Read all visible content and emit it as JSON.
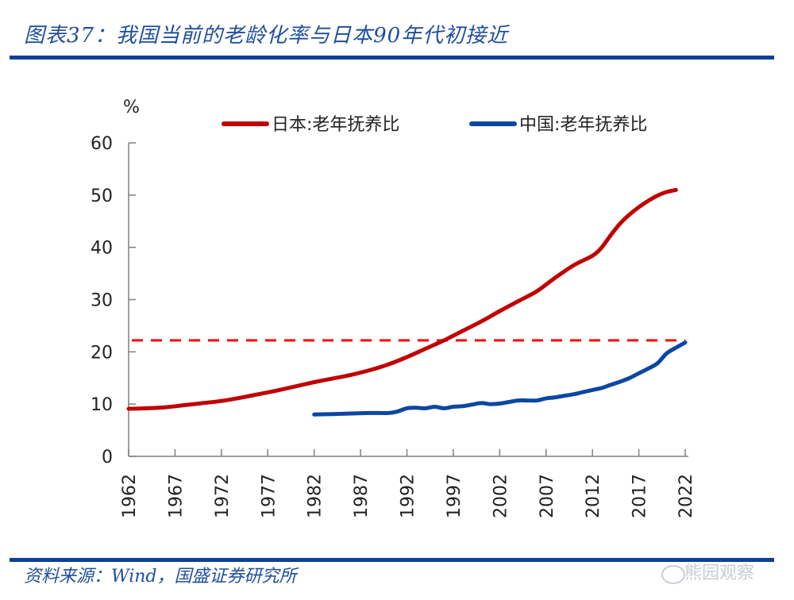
{
  "header": {
    "title": "图表37：我国当前的老龄化率与日本90年代初接近"
  },
  "footer": {
    "source": "资料来源：Wind，国盛证券研究所",
    "watermark": "熊园观察"
  },
  "colors": {
    "brand": "#0b3f99",
    "japan": "#c00000",
    "china": "#0b47a1",
    "reference": "#ff0000"
  },
  "chart_data": {
    "type": "line",
    "title": "我国当前的老龄化率与日本90年代初接近",
    "xlabel": "",
    "ylabel": "%",
    "ylim": [
      0,
      60
    ],
    "xlim": [
      1962,
      2022
    ],
    "yticks": [
      0,
      10,
      20,
      30,
      40,
      50,
      60
    ],
    "xticks": [
      "1962",
      "1967",
      "1972",
      "1977",
      "1982",
      "1987",
      "1992",
      "1997",
      "2002",
      "2007",
      "2012",
      "2017",
      "2022"
    ],
    "grid": false,
    "legend": "top",
    "series": [
      {
        "name": "日本:老年抚养比",
        "color": "#c00000",
        "x": [
          1962,
          1964,
          1966,
          1968,
          1970,
          1972,
          1974,
          1976,
          1978,
          1980,
          1982,
          1984,
          1986,
          1988,
          1990,
          1992,
          1994,
          1996,
          1998,
          2000,
          2002,
          2004,
          2006,
          2008,
          2010,
          2012,
          2013,
          2014,
          2015,
          2016,
          2017,
          2018,
          2019,
          2020,
          2021
        ],
        "values": [
          9.1,
          9.2,
          9.4,
          9.8,
          10.2,
          10.6,
          11.2,
          11.9,
          12.6,
          13.4,
          14.2,
          14.9,
          15.6,
          16.5,
          17.6,
          19.0,
          20.6,
          22.2,
          24.0,
          25.8,
          27.8,
          29.7,
          31.6,
          34.2,
          36.6,
          38.4,
          40.0,
          42.4,
          44.6,
          46.3,
          47.7,
          48.9,
          49.9,
          50.6,
          51.0
        ]
      },
      {
        "name": "中国:老年抚养比",
        "color": "#0b47a1",
        "x": [
          1982,
          1984,
          1986,
          1988,
          1990,
          1991,
          1992,
          1993,
          1994,
          1995,
          1996,
          1997,
          1998,
          1999,
          2000,
          2001,
          2002,
          2003,
          2004,
          2005,
          2006,
          2007,
          2008,
          2009,
          2010,
          2011,
          2012,
          2013,
          2014,
          2015,
          2016,
          2017,
          2018,
          2019,
          2020,
          2021,
          2022
        ],
        "values": [
          8.0,
          8.1,
          8.2,
          8.3,
          8.3,
          8.6,
          9.2,
          9.3,
          9.2,
          9.5,
          9.2,
          9.5,
          9.6,
          9.9,
          10.2,
          10.0,
          10.1,
          10.4,
          10.7,
          10.7,
          10.7,
          11.1,
          11.3,
          11.6,
          11.9,
          12.3,
          12.7,
          13.1,
          13.7,
          14.3,
          15.0,
          15.9,
          16.8,
          17.8,
          19.7,
          20.8,
          21.8
        ]
      }
    ],
    "reference_lines": [
      {
        "name": "reference-level",
        "y": 22.2,
        "style": "dashed",
        "color": "#ff0000"
      }
    ]
  }
}
